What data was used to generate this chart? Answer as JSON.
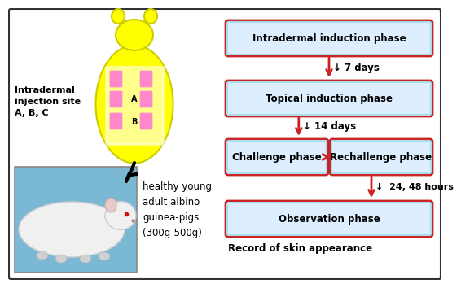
{
  "bg_color": "#ffffff",
  "border_color": "#333333",
  "box_fill": "#ddeeff",
  "box_edge_top": "#cc2222",
  "box_edge_bottom": "#cc2222",
  "box_texts": [
    "Intradermal induction phase",
    "Topical induction phase",
    "Challenge phase",
    "Rechallenge phase",
    "Observation phase"
  ],
  "arrow_color": "#cc2222",
  "text_color": "#000000",
  "yellow_body": "#ffff00",
  "yellow_edge": "#cccc00",
  "pink_color": "#ff88cc",
  "gp_photo_bg": "#7ab8d4",
  "left_label": "Intradermal\ninjection site\nA, B, C",
  "right_label": "healthy young\nadult albino\nguinea-pigs\n(300g-500g)",
  "record_text": "Record of skin appearance",
  "day_labels": [
    "↓ 7 days",
    "↓ 14 days",
    "↓  24, 48 hours"
  ]
}
